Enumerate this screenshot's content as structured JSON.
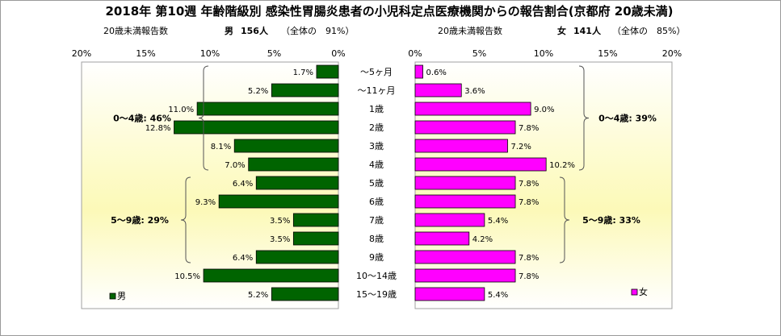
{
  "chart_data": {
    "type": "bar",
    "title": "2018年 第10週 年齢階級別 感染性胃腸炎患者の小児科定点医療機関からの報告割合(京都府 20歳未満)",
    "categories": [
      "～5ヶ月",
      "～11ヶ月",
      "1歳",
      "2歳",
      "3歳",
      "4歳",
      "5歳",
      "6歳",
      "7歳",
      "8歳",
      "9歳",
      "10～14歳",
      "15～19歳"
    ],
    "tick_labels": [
      "0%",
      "5%",
      "10%",
      "15%",
      "20%"
    ],
    "xlim": [
      0,
      20
    ],
    "series": [
      {
        "name": "男",
        "color": "#006400",
        "header": {
          "label": "20歳未満報告数",
          "sex": "男",
          "count": "156人",
          "share": "（全体の　91%）"
        },
        "values": [
          1.7,
          5.2,
          11.0,
          12.8,
          8.1,
          7.0,
          6.4,
          9.3,
          3.5,
          3.5,
          6.4,
          10.5,
          5.2
        ],
        "labels": [
          "1.7%",
          "5.2%",
          "11.0%",
          "12.8%",
          "8.1%",
          "7.0%",
          "6.4%",
          "9.3%",
          "3.5%",
          "3.5%",
          "6.4%",
          "10.5%",
          "5.2%"
        ],
        "groups": [
          {
            "label": "0～4歳: 46%",
            "from": 0,
            "to": 5
          },
          {
            "label": "5～9歳: 29%",
            "from": 6,
            "to": 10
          }
        ]
      },
      {
        "name": "女",
        "color": "#ff00ff",
        "header": {
          "label": "20歳未満報告数",
          "sex": "女",
          "count": "141人",
          "share": "（全体の　85%）"
        },
        "values": [
          0.6,
          3.6,
          9.0,
          7.8,
          7.2,
          10.2,
          7.8,
          7.8,
          5.4,
          4.2,
          7.8,
          7.8,
          5.4
        ],
        "labels": [
          "0.6%",
          "3.6%",
          "9.0%",
          "7.8%",
          "7.2%",
          "10.2%",
          "7.8%",
          "7.8%",
          "5.4%",
          "4.2%",
          "7.8%",
          "7.8%",
          "5.4%"
        ],
        "groups": [
          {
            "label": "0～4歳: 39%",
            "from": 0,
            "to": 5
          },
          {
            "label": "5～9歳: 33%",
            "from": 6,
            "to": 10
          }
        ]
      }
    ],
    "legend": [
      "男",
      "女"
    ]
  }
}
